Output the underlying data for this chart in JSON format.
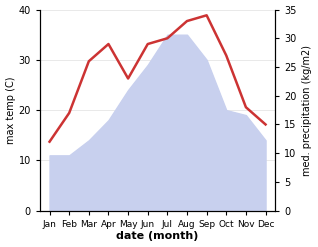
{
  "months": [
    "Jan",
    "Feb",
    "Mar",
    "Apr",
    "May",
    "Jun",
    "Jul",
    "Aug",
    "Sep",
    "Oct",
    "Nov",
    "Dec"
  ],
  "temperature": [
    11,
    11,
    14,
    18,
    24,
    29,
    35,
    35,
    30,
    20,
    19,
    14
  ],
  "precipitation": [
    12,
    17,
    26,
    29,
    23,
    29,
    30,
    33,
    34,
    27,
    18,
    15
  ],
  "temp_fill_color": "#c8d0ee",
  "precip_color": "#cc3333",
  "ylabel_left": "max temp (C)",
  "ylabel_right": "med. precipitation (kg/m2)",
  "xlabel": "date (month)",
  "ylim_left": [
    0,
    40
  ],
  "ylim_right": [
    0,
    35
  ],
  "yticks_left": [
    0,
    10,
    20,
    30,
    40
  ],
  "yticks_right": [
    0,
    5,
    10,
    15,
    20,
    25,
    30,
    35
  ],
  "background_color": "#ffffff"
}
